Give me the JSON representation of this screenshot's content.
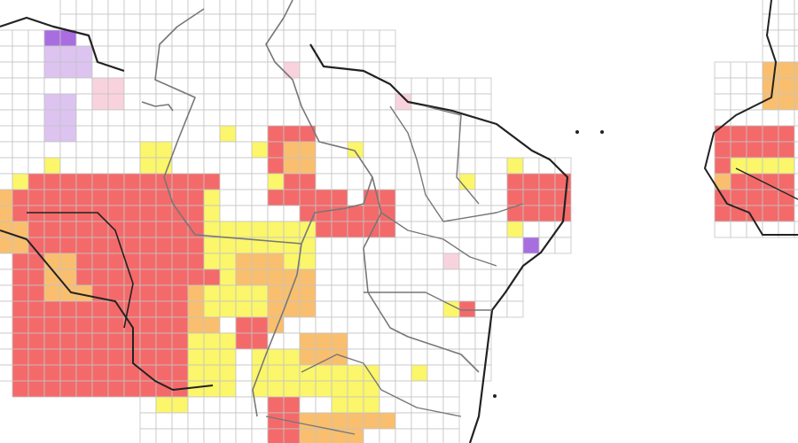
{
  "map": {
    "grid_color": "#c4c4c4",
    "border_color": "#222222",
    "inner_border_color": "#777777",
    "cell_colors": {
      "white": "#ffffff",
      "yellow": "#fbf66a",
      "orange": "#f9bf6e",
      "red": "#f46a6a",
      "pink": "#f8d3dd",
      "violet": "#a86ee0",
      "lavender": "#dcc3f0"
    }
  }
}
